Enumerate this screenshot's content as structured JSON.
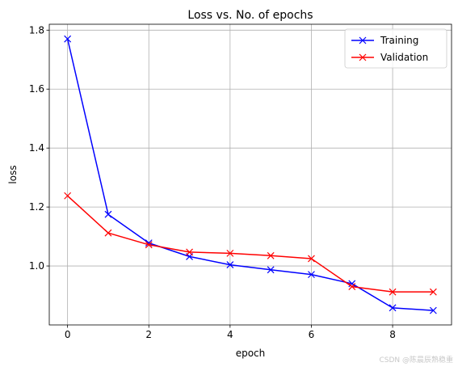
{
  "chart_data": {
    "type": "line",
    "title": "Loss vs. No. of epochs",
    "xlabel": "epoch",
    "ylabel": "loss",
    "x": [
      0,
      1,
      2,
      3,
      4,
      5,
      6,
      7,
      8,
      9
    ],
    "xlim": [
      -0.45,
      9.45
    ],
    "ylim": [
      0.8,
      1.82
    ],
    "xticks": [
      0,
      2,
      4,
      6,
      8
    ],
    "yticks": [
      1.0,
      1.2,
      1.4,
      1.6,
      1.8
    ],
    "ytick_labels": [
      "1.0",
      "1.2",
      "1.4",
      "1.6",
      "1.8"
    ],
    "grid": true,
    "legend_position": "top-right",
    "series": [
      {
        "name": "Training",
        "color": "#0000ff",
        "marker": "x",
        "values": [
          1.77,
          1.175,
          1.078,
          1.032,
          1.004,
          0.987,
          0.971,
          0.94,
          0.858,
          0.849
        ]
      },
      {
        "name": "Validation",
        "color": "#ff0000",
        "marker": "x",
        "values": [
          1.238,
          1.112,
          1.072,
          1.047,
          1.043,
          1.035,
          1.025,
          0.93,
          0.912,
          0.912
        ]
      }
    ]
  },
  "watermark": "CSDN @陈晨辰熟稳重"
}
